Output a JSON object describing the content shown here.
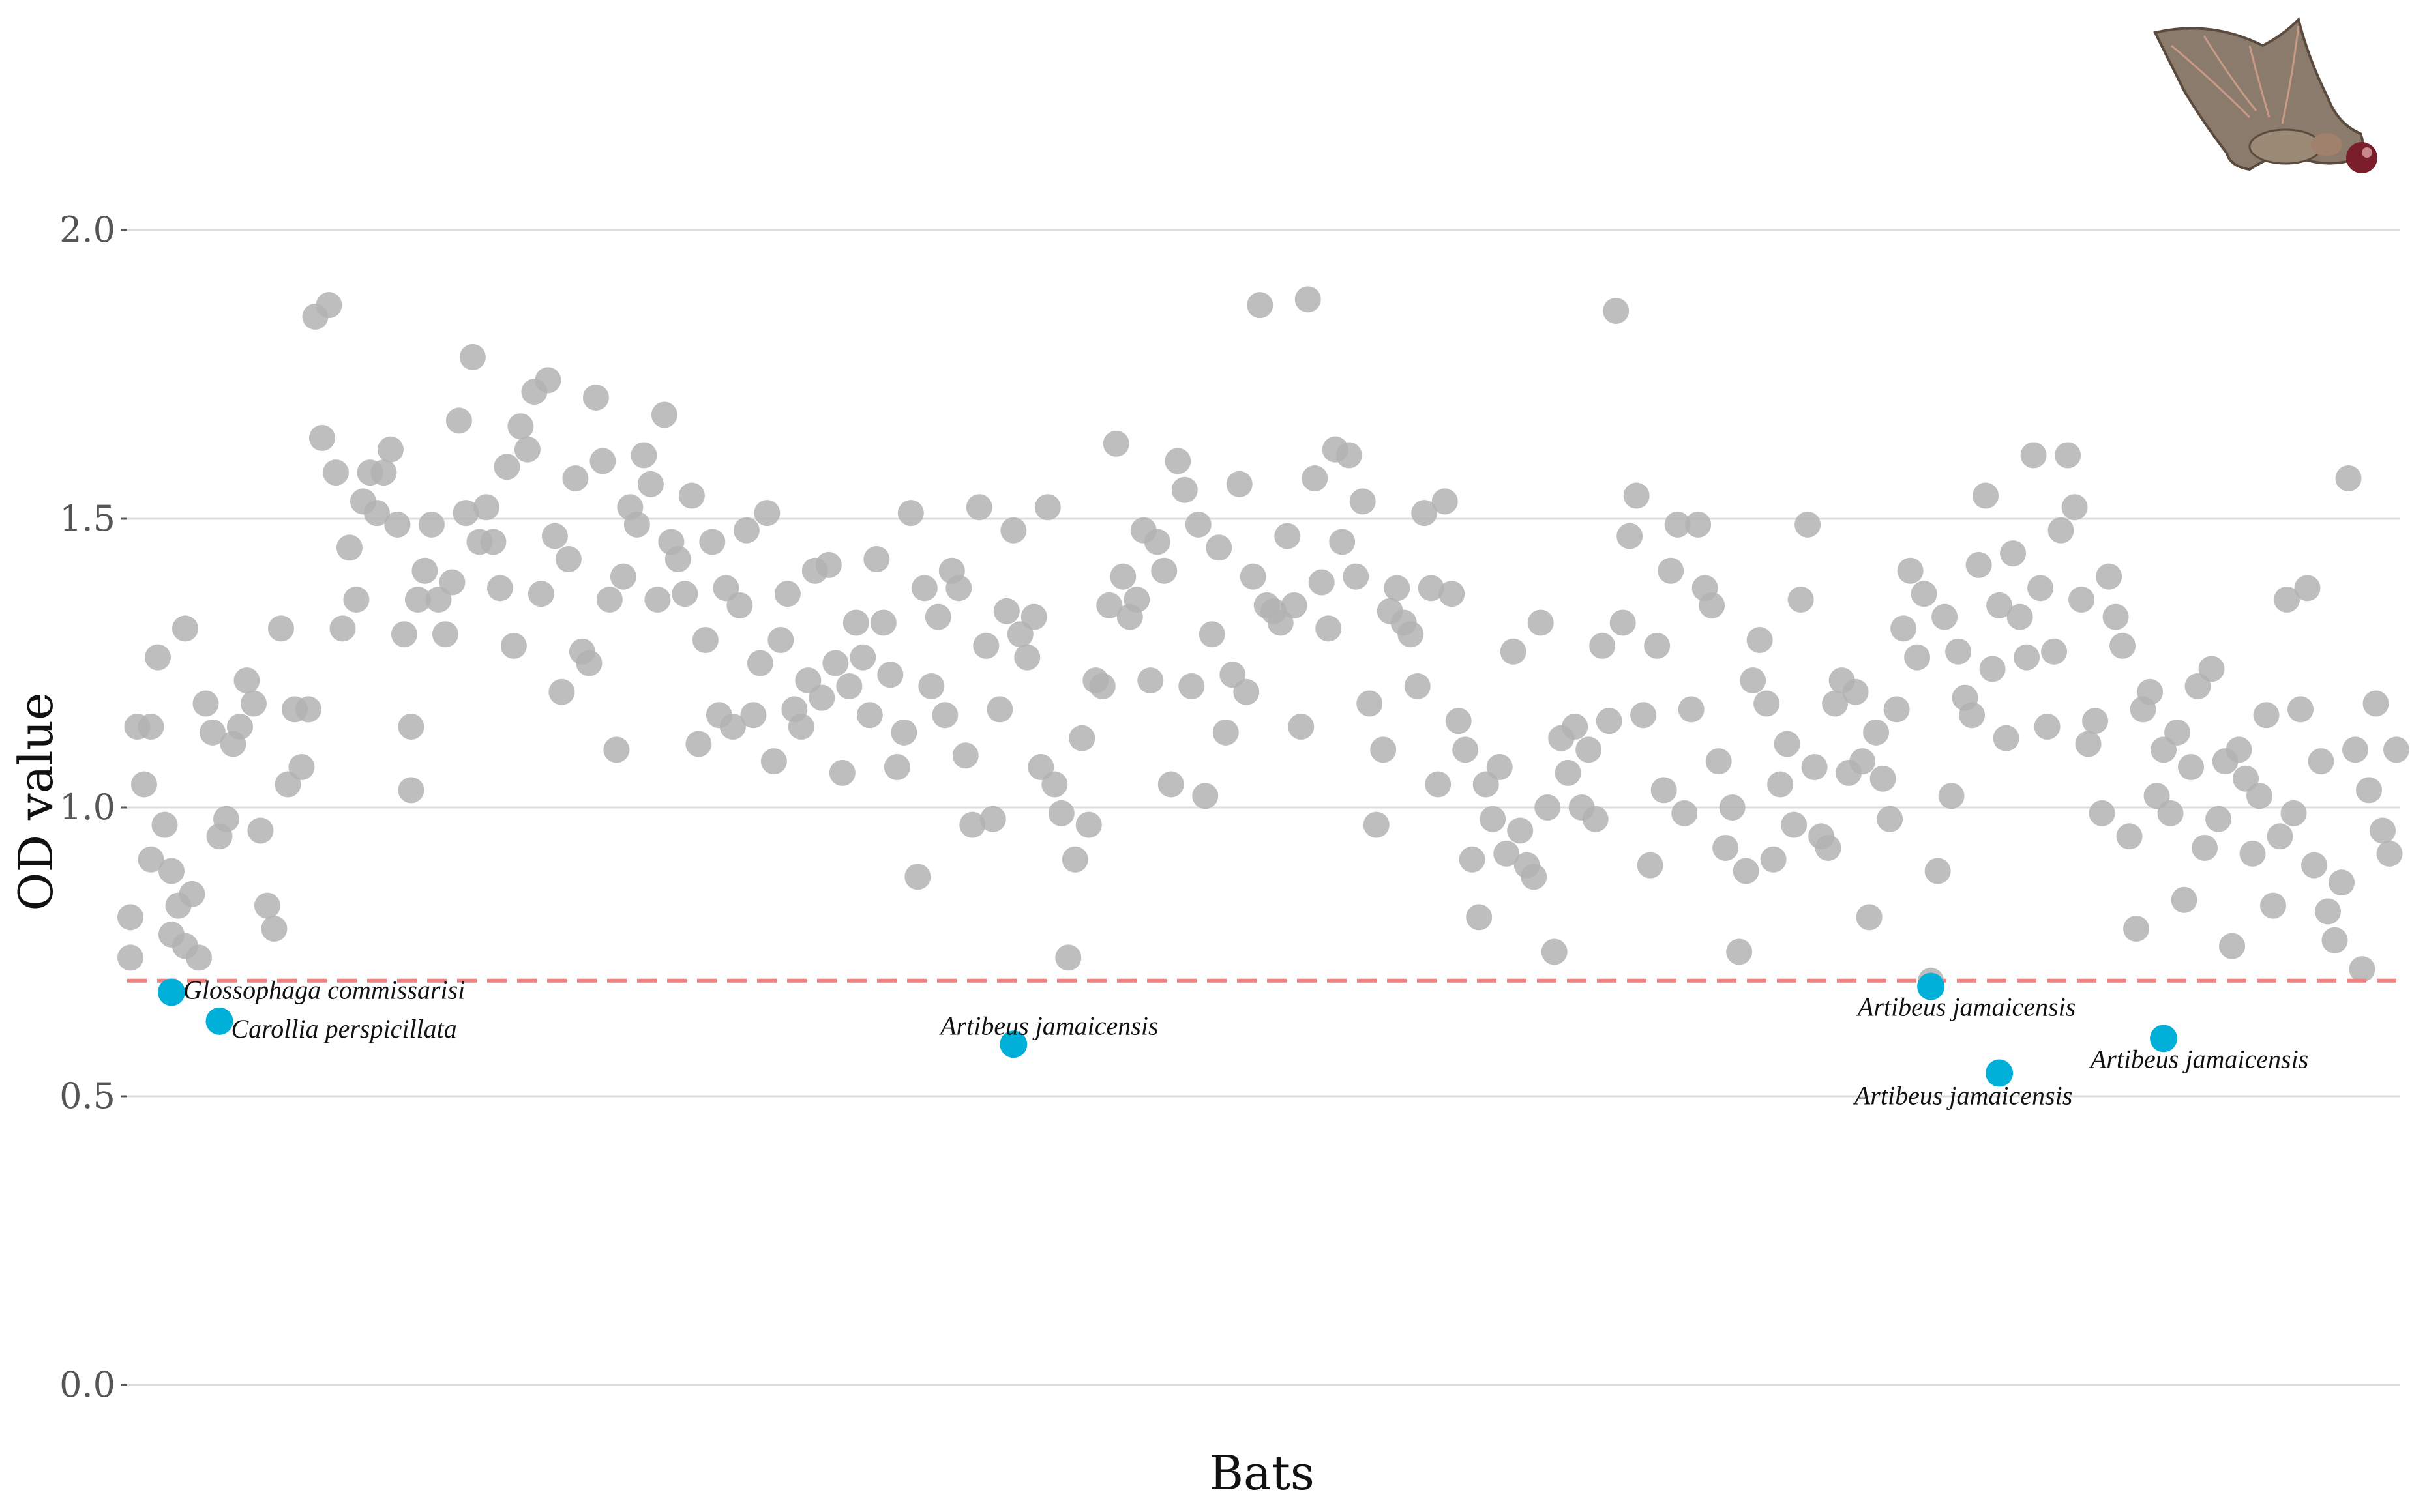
{
  "chart_data": {
    "type": "scatter",
    "xlabel": "Bats",
    "ylabel": "OD value",
    "ylim": [
      0,
      2.0
    ],
    "yticks": [
      0.0,
      0.5,
      1.0,
      1.5,
      2.0
    ],
    "ytick_labels": [
      "0.0",
      "0.5",
      "1.0",
      "1.5",
      "2.0"
    ],
    "threshold": 0.7,
    "grid": "horizontal",
    "colors": {
      "background_points": "#b3b3b3",
      "highlight_points": "#00b0d8",
      "threshold_line": "#f08080",
      "grid": "#dddddd"
    },
    "icon": "bat-with-fruit-icon",
    "highlighted": [
      {
        "x": 7,
        "y": 0.68,
        "label": "Glossophaga commissarisi"
      },
      {
        "x": 14,
        "y": 0.63,
        "label": "Carollia perspicillata"
      },
      {
        "x": 130,
        "y": 0.59,
        "label": "Artibeus jamaicensis"
      },
      {
        "x": 264,
        "y": 0.69,
        "label": "Artibeus jamaicensis"
      },
      {
        "x": 274,
        "y": 0.54,
        "label": "Artibeus jamaicensis"
      },
      {
        "x": 298,
        "y": 0.6,
        "label": "Artibeus jamaicensis"
      }
    ],
    "points": [
      [
        1,
        0.74
      ],
      [
        1,
        0.81
      ],
      [
        2,
        1.14
      ],
      [
        3,
        1.04
      ],
      [
        4,
        1.14
      ],
      [
        4,
        0.91
      ],
      [
        5,
        1.26
      ],
      [
        6,
        0.97
      ],
      [
        7,
        0.89
      ],
      [
        7,
        0.78
      ],
      [
        8,
        0.83
      ],
      [
        9,
        1.31
      ],
      [
        9,
        0.76
      ],
      [
        10,
        0.85
      ],
      [
        11,
        0.74
      ],
      [
        12,
        1.18
      ],
      [
        13,
        1.13
      ],
      [
        14,
        0.95
      ],
      [
        15,
        0.98
      ],
      [
        16,
        1.11
      ],
      [
        17,
        1.14
      ],
      [
        18,
        1.22
      ],
      [
        19,
        1.18
      ],
      [
        20,
        0.96
      ],
      [
        21,
        0.83
      ],
      [
        22,
        0.79
      ],
      [
        23,
        1.31
      ],
      [
        24,
        1.04
      ],
      [
        25,
        1.17
      ],
      [
        26,
        1.07
      ],
      [
        27,
        1.17
      ],
      [
        28,
        1.85
      ],
      [
        29,
        1.64
      ],
      [
        30,
        1.87
      ],
      [
        31,
        1.58
      ],
      [
        32,
        1.31
      ],
      [
        33,
        1.45
      ],
      [
        34,
        1.36
      ],
      [
        35,
        1.53
      ],
      [
        36,
        1.58
      ],
      [
        37,
        1.51
      ],
      [
        38,
        1.58
      ],
      [
        39,
        1.62
      ],
      [
        40,
        1.49
      ],
      [
        41,
        1.3
      ],
      [
        42,
        1.14
      ],
      [
        42,
        1.03
      ],
      [
        43,
        1.36
      ],
      [
        44,
        1.41
      ],
      [
        45,
        1.49
      ],
      [
        46,
        1.36
      ],
      [
        47,
        1.3
      ],
      [
        48,
        1.39
      ],
      [
        49,
        1.67
      ],
      [
        50,
        1.51
      ],
      [
        51,
        1.78
      ],
      [
        52,
        1.46
      ],
      [
        53,
        1.52
      ],
      [
        54,
        1.46
      ],
      [
        55,
        1.38
      ],
      [
        56,
        1.59
      ],
      [
        57,
        1.28
      ],
      [
        58,
        1.66
      ],
      [
        59,
        1.62
      ],
      [
        60,
        1.72
      ],
      [
        61,
        1.37
      ],
      [
        62,
        1.74
      ],
      [
        63,
        1.47
      ],
      [
        64,
        1.2
      ],
      [
        65,
        1.43
      ],
      [
        66,
        1.57
      ],
      [
        67,
        1.27
      ],
      [
        68,
        1.25
      ],
      [
        69,
        1.71
      ],
      [
        70,
        1.6
      ],
      [
        71,
        1.36
      ],
      [
        72,
        1.1
      ],
      [
        73,
        1.4
      ],
      [
        74,
        1.52
      ],
      [
        75,
        1.49
      ],
      [
        76,
        1.61
      ],
      [
        77,
        1.56
      ],
      [
        78,
        1.36
      ],
      [
        79,
        1.68
      ],
      [
        80,
        1.46
      ],
      [
        81,
        1.43
      ],
      [
        82,
        1.37
      ],
      [
        83,
        1.54
      ],
      [
        84,
        1.11
      ],
      [
        85,
        1.29
      ],
      [
        86,
        1.46
      ],
      [
        87,
        1.16
      ],
      [
        88,
        1.38
      ],
      [
        89,
        1.14
      ],
      [
        90,
        1.35
      ],
      [
        91,
        1.48
      ],
      [
        92,
        1.16
      ],
      [
        93,
        1.25
      ],
      [
        94,
        1.51
      ],
      [
        95,
        1.08
      ],
      [
        96,
        1.29
      ],
      [
        97,
        1.37
      ],
      [
        98,
        1.17
      ],
      [
        99,
        1.14
      ],
      [
        100,
        1.22
      ],
      [
        101,
        1.41
      ],
      [
        102,
        1.19
      ],
      [
        103,
        1.42
      ],
      [
        104,
        1.25
      ],
      [
        105,
        1.06
      ],
      [
        106,
        1.21
      ],
      [
        107,
        1.32
      ],
      [
        108,
        1.26
      ],
      [
        109,
        1.16
      ],
      [
        110,
        1.43
      ],
      [
        111,
        1.32
      ],
      [
        112,
        1.23
      ],
      [
        113,
        1.07
      ],
      [
        114,
        1.13
      ],
      [
        115,
        1.51
      ],
      [
        116,
        0.88
      ],
      [
        117,
        1.38
      ],
      [
        118,
        1.21
      ],
      [
        119,
        1.33
      ],
      [
        120,
        1.16
      ],
      [
        121,
        1.41
      ],
      [
        122,
        1.38
      ],
      [
        123,
        1.09
      ],
      [
        124,
        0.97
      ],
      [
        125,
        1.52
      ],
      [
        126,
        1.28
      ],
      [
        127,
        0.98
      ],
      [
        128,
        1.17
      ],
      [
        129,
        1.34
      ],
      [
        130,
        1.48
      ],
      [
        131,
        1.3
      ],
      [
        132,
        1.26
      ],
      [
        133,
        1.33
      ],
      [
        134,
        1.07
      ],
      [
        135,
        1.52
      ],
      [
        136,
        1.04
      ],
      [
        137,
        0.99
      ],
      [
        138,
        0.74
      ],
      [
        139,
        0.91
      ],
      [
        140,
        1.12
      ],
      [
        141,
        0.97
      ],
      [
        142,
        1.22
      ],
      [
        143,
        1.21
      ],
      [
        144,
        1.35
      ],
      [
        145,
        1.63
      ],
      [
        146,
        1.4
      ],
      [
        147,
        1.33
      ],
      [
        148,
        1.36
      ],
      [
        149,
        1.48
      ],
      [
        150,
        1.22
      ],
      [
        151,
        1.46
      ],
      [
        152,
        1.41
      ],
      [
        153,
        1.04
      ],
      [
        154,
        1.6
      ],
      [
        155,
        1.55
      ],
      [
        156,
        1.21
      ],
      [
        157,
        1.49
      ],
      [
        158,
        1.02
      ],
      [
        159,
        1.3
      ],
      [
        160,
        1.45
      ],
      [
        161,
        1.13
      ],
      [
        162,
        1.23
      ],
      [
        163,
        1.56
      ],
      [
        164,
        1.2
      ],
      [
        165,
        1.4
      ],
      [
        166,
        1.87
      ],
      [
        167,
        1.35
      ],
      [
        168,
        1.34
      ],
      [
        169,
        1.32
      ],
      [
        170,
        1.47
      ],
      [
        171,
        1.35
      ],
      [
        172,
        1.14
      ],
      [
        173,
        1.88
      ],
      [
        174,
        1.57
      ],
      [
        175,
        1.39
      ],
      [
        176,
        1.31
      ],
      [
        177,
        1.62
      ],
      [
        178,
        1.46
      ],
      [
        179,
        1.61
      ],
      [
        180,
        1.4
      ],
      [
        181,
        1.53
      ],
      [
        182,
        1.18
      ],
      [
        183,
        0.97
      ],
      [
        184,
        1.1
      ],
      [
        185,
        1.34
      ],
      [
        186,
        1.38
      ],
      [
        187,
        1.32
      ],
      [
        188,
        1.3
      ],
      [
        189,
        1.21
      ],
      [
        190,
        1.51
      ],
      [
        191,
        1.38
      ],
      [
        192,
        1.04
      ],
      [
        193,
        1.53
      ],
      [
        194,
        1.37
      ],
      [
        195,
        1.15
      ],
      [
        196,
        1.1
      ],
      [
        197,
        0.91
      ],
      [
        198,
        0.81
      ],
      [
        199,
        1.04
      ],
      [
        200,
        0.98
      ],
      [
        201,
        1.07
      ],
      [
        202,
        0.92
      ],
      [
        203,
        1.27
      ],
      [
        204,
        0.96
      ],
      [
        205,
        0.9
      ],
      [
        206,
        0.88
      ],
      [
        207,
        1.32
      ],
      [
        208,
        1.0
      ],
      [
        209,
        0.75
      ],
      [
        210,
        1.12
      ],
      [
        211,
        1.06
      ],
      [
        212,
        1.14
      ],
      [
        213,
        1.0
      ],
      [
        214,
        1.1
      ],
      [
        215,
        0.98
      ],
      [
        216,
        1.28
      ],
      [
        217,
        1.15
      ],
      [
        218,
        1.86
      ],
      [
        219,
        1.32
      ],
      [
        220,
        1.47
      ],
      [
        221,
        1.54
      ],
      [
        222,
        1.16
      ],
      [
        223,
        0.9
      ],
      [
        224,
        1.28
      ],
      [
        225,
        1.03
      ],
      [
        226,
        1.41
      ],
      [
        227,
        1.49
      ],
      [
        228,
        0.99
      ],
      [
        229,
        1.17
      ],
      [
        230,
        1.49
      ],
      [
        231,
        1.38
      ],
      [
        232,
        1.35
      ],
      [
        233,
        1.08
      ],
      [
        234,
        0.93
      ],
      [
        235,
        1.0
      ],
      [
        236,
        0.75
      ],
      [
        237,
        0.89
      ],
      [
        238,
        1.22
      ],
      [
        239,
        1.29
      ],
      [
        240,
        1.18
      ],
      [
        241,
        0.91
      ],
      [
        242,
        1.04
      ],
      [
        243,
        1.11
      ],
      [
        244,
        0.97
      ],
      [
        245,
        1.36
      ],
      [
        246,
        1.49
      ],
      [
        247,
        1.07
      ],
      [
        248,
        0.95
      ],
      [
        249,
        0.93
      ],
      [
        250,
        1.18
      ],
      [
        251,
        1.22
      ],
      [
        252,
        1.06
      ],
      [
        253,
        1.2
      ],
      [
        254,
        1.08
      ],
      [
        255,
        0.81
      ],
      [
        256,
        1.13
      ],
      [
        257,
        1.05
      ],
      [
        258,
        0.98
      ],
      [
        259,
        1.17
      ],
      [
        260,
        1.31
      ],
      [
        261,
        1.41
      ],
      [
        262,
        1.26
      ],
      [
        263,
        1.37
      ],
      [
        264,
        0.7
      ],
      [
        265,
        0.89
      ],
      [
        266,
        1.33
      ],
      [
        267,
        1.02
      ],
      [
        268,
        1.27
      ],
      [
        269,
        1.19
      ],
      [
        270,
        1.16
      ],
      [
        271,
        1.42
      ],
      [
        272,
        1.54
      ],
      [
        273,
        1.24
      ],
      [
        274,
        1.35
      ],
      [
        275,
        1.12
      ],
      [
        276,
        1.44
      ],
      [
        277,
        1.33
      ],
      [
        278,
        1.26
      ],
      [
        279,
        1.61
      ],
      [
        280,
        1.38
      ],
      [
        281,
        1.14
      ],
      [
        282,
        1.27
      ],
      [
        283,
        1.48
      ],
      [
        284,
        1.61
      ],
      [
        285,
        1.52
      ],
      [
        286,
        1.36
      ],
      [
        287,
        1.11
      ],
      [
        288,
        1.15
      ],
      [
        289,
        0.99
      ],
      [
        290,
        1.4
      ],
      [
        291,
        1.33
      ],
      [
        292,
        1.28
      ],
      [
        293,
        0.95
      ],
      [
        294,
        0.79
      ],
      [
        295,
        1.17
      ],
      [
        296,
        1.2
      ],
      [
        297,
        1.02
      ],
      [
        298,
        1.1
      ],
      [
        299,
        0.99
      ],
      [
        300,
        1.13
      ],
      [
        301,
        0.84
      ],
      [
        302,
        1.07
      ],
      [
        303,
        1.21
      ],
      [
        304,
        0.93
      ],
      [
        305,
        1.24
      ],
      [
        306,
        0.98
      ],
      [
        307,
        1.08
      ],
      [
        308,
        0.76
      ],
      [
        309,
        1.1
      ],
      [
        310,
        1.05
      ],
      [
        311,
        0.92
      ],
      [
        312,
        1.02
      ],
      [
        313,
        1.16
      ],
      [
        314,
        0.83
      ],
      [
        315,
        0.95
      ],
      [
        316,
        1.36
      ],
      [
        317,
        0.99
      ],
      [
        318,
        1.17
      ],
      [
        319,
        1.38
      ],
      [
        320,
        0.9
      ],
      [
        321,
        1.08
      ],
      [
        322,
        0.82
      ],
      [
        323,
        0.77
      ],
      [
        324,
        0.87
      ],
      [
        325,
        1.57
      ],
      [
        326,
        1.1
      ],
      [
        327,
        0.72
      ],
      [
        328,
        1.03
      ],
      [
        329,
        1.18
      ],
      [
        330,
        0.96
      ],
      [
        331,
        0.92
      ],
      [
        332,
        1.1
      ]
    ]
  }
}
